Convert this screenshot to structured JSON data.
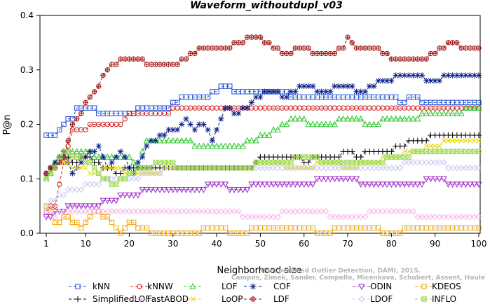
{
  "chart_data": {
    "type": "line",
    "title": "Waveform_withoutdupl_v03",
    "xlabel": "Neighborhood size",
    "ylabel": "P@n",
    "xlim": [
      1,
      100
    ],
    "ylim": [
      0,
      0.4
    ],
    "x_ticks": [
      1,
      10,
      20,
      30,
      40,
      50,
      60,
      70,
      80,
      90,
      100
    ],
    "y_ticks": [
      0.0,
      0.1,
      0.2,
      0.3,
      0.4
    ],
    "y_tick_labels": [
      "0.0",
      "0.1",
      "0.2",
      "0.3",
      "0.4"
    ],
    "grid": false,
    "legend_position": "bottom",
    "watermark": [
      "Campos, Zimek, Sander, Campello, Micenkova, Schubert, Assent, Houle",
      "Unsupervised Outlier Detection, DAMI, 2015."
    ],
    "series": [
      {
        "name": "kNN",
        "color": "#1f4fd6",
        "marker": "square",
        "dash": "4,3",
        "points": [
          [
            1,
            0.18
          ],
          [
            3,
            0.18
          ],
          [
            4,
            0.19
          ],
          [
            5,
            0.2
          ],
          [
            7,
            0.21
          ],
          [
            8,
            0.23
          ],
          [
            12,
            0.23
          ],
          [
            13,
            0.22
          ],
          [
            20,
            0.22
          ],
          [
            24,
            0.23
          ],
          [
            28,
            0.23
          ],
          [
            31,
            0.24
          ],
          [
            33,
            0.25
          ],
          [
            38,
            0.25
          ],
          [
            40,
            0.26
          ],
          [
            42,
            0.27
          ],
          [
            45,
            0.26
          ],
          [
            55,
            0.26
          ],
          [
            57,
            0.25
          ],
          [
            80,
            0.25
          ],
          [
            82,
            0.24
          ],
          [
            85,
            0.25
          ],
          [
            87,
            0.24
          ],
          [
            100,
            0.24
          ]
        ]
      },
      {
        "name": "kNNW",
        "color": "#d02020",
        "marker": "circle",
        "dash": "4,3",
        "points": [
          [
            1,
            0.04
          ],
          [
            3,
            0.05
          ],
          [
            5,
            0.13
          ],
          [
            7,
            0.19
          ],
          [
            10,
            0.19
          ],
          [
            11,
            0.2
          ],
          [
            18,
            0.2
          ],
          [
            19,
            0.21
          ],
          [
            21,
            0.22
          ],
          [
            29,
            0.22
          ],
          [
            31,
            0.23
          ],
          [
            100,
            0.23
          ]
        ]
      },
      {
        "name": "LOF",
        "color": "#2ec42e",
        "marker": "triangle",
        "dash": "4,3",
        "points": [
          [
            1,
            0.1
          ],
          [
            4,
            0.14
          ],
          [
            8,
            0.15
          ],
          [
            14,
            0.14
          ],
          [
            20,
            0.14
          ],
          [
            22,
            0.12
          ],
          [
            24,
            0.17
          ],
          [
            32,
            0.17
          ],
          [
            36,
            0.16
          ],
          [
            45,
            0.16
          ],
          [
            48,
            0.17
          ],
          [
            52,
            0.18
          ],
          [
            55,
            0.2
          ],
          [
            58,
            0.21
          ],
          [
            62,
            0.2
          ],
          [
            66,
            0.2
          ],
          [
            70,
            0.21
          ],
          [
            76,
            0.2
          ],
          [
            80,
            0.21
          ],
          [
            86,
            0.21
          ],
          [
            88,
            0.22
          ],
          [
            96,
            0.22
          ],
          [
            98,
            0.23
          ],
          [
            100,
            0.23
          ]
        ]
      },
      {
        "name": "COF",
        "color": "#0a1f8a",
        "marker": "star",
        "dash": "4,3",
        "points": [
          [
            1,
            0.11
          ],
          [
            3,
            0.13
          ],
          [
            5,
            0.15
          ],
          [
            7,
            0.11
          ],
          [
            10,
            0.14
          ],
          [
            13,
            0.16
          ],
          [
            15,
            0.12
          ],
          [
            18,
            0.15
          ],
          [
            21,
            0.11
          ],
          [
            24,
            0.16
          ],
          [
            27,
            0.18
          ],
          [
            31,
            0.19
          ],
          [
            33,
            0.21
          ],
          [
            35,
            0.19
          ],
          [
            37,
            0.2
          ],
          [
            39,
            0.17
          ],
          [
            42,
            0.23
          ],
          [
            45,
            0.22
          ],
          [
            48,
            0.24
          ],
          [
            52,
            0.26
          ],
          [
            56,
            0.25
          ],
          [
            60,
            0.27
          ],
          [
            64,
            0.26
          ],
          [
            70,
            0.27
          ],
          [
            73,
            0.26
          ],
          [
            78,
            0.28
          ],
          [
            84,
            0.29
          ],
          [
            90,
            0.28
          ],
          [
            93,
            0.29
          ],
          [
            100,
            0.29
          ]
        ]
      },
      {
        "name": "ODIN",
        "color": "#9b29c9",
        "marker": "invtriangle",
        "dash": "4,3",
        "points": [
          [
            1,
            0.03
          ],
          [
            4,
            0.04
          ],
          [
            8,
            0.05
          ],
          [
            12,
            0.05
          ],
          [
            16,
            0.06
          ],
          [
            20,
            0.07
          ],
          [
            25,
            0.08
          ],
          [
            30,
            0.08
          ],
          [
            35,
            0.08
          ],
          [
            40,
            0.09
          ],
          [
            45,
            0.08
          ],
          [
            50,
            0.09
          ],
          [
            55,
            0.09
          ],
          [
            60,
            0.09
          ],
          [
            65,
            0.1
          ],
          [
            70,
            0.1
          ],
          [
            75,
            0.09
          ],
          [
            80,
            0.09
          ],
          [
            85,
            0.09
          ],
          [
            90,
            0.1
          ],
          [
            95,
            0.09
          ],
          [
            100,
            0.09
          ]
        ]
      },
      {
        "name": "KDEOS",
        "color": "#f0a500",
        "marker": "square",
        "dash": "4,3",
        "points": [
          [
            1,
            0.05
          ],
          [
            3,
            0.02
          ],
          [
            6,
            0.03
          ],
          [
            9,
            0.01
          ],
          [
            12,
            0.04
          ],
          [
            15,
            0.03
          ],
          [
            18,
            0.0
          ],
          [
            20,
            0.02
          ],
          [
            22,
            0.01
          ],
          [
            26,
            0.0
          ],
          [
            34,
            0.0
          ],
          [
            40,
            0.01
          ],
          [
            45,
            0.0
          ],
          [
            50,
            0.01
          ],
          [
            60,
            0.01
          ],
          [
            65,
            0.0
          ],
          [
            68,
            0.01
          ],
          [
            75,
            0.01
          ],
          [
            80,
            0.0
          ],
          [
            85,
            0.01
          ],
          [
            100,
            0.01
          ]
        ]
      },
      {
        "name": "SimplifiedLOF",
        "color": "#000000",
        "marker": "plus",
        "dash": "4,3",
        "points": [
          [
            1,
            0.11
          ],
          [
            3,
            0.12
          ],
          [
            5,
            0.14
          ],
          [
            8,
            0.13
          ],
          [
            10,
            0.14
          ],
          [
            14,
            0.12
          ],
          [
            18,
            0.11
          ],
          [
            20,
            0.12
          ],
          [
            25,
            0.12
          ],
          [
            48,
            0.12
          ],
          [
            50,
            0.14
          ],
          [
            58,
            0.14
          ],
          [
            60,
            0.13
          ],
          [
            64,
            0.14
          ],
          [
            68,
            0.14
          ],
          [
            70,
            0.15
          ],
          [
            72,
            0.14
          ],
          [
            75,
            0.15
          ],
          [
            80,
            0.15
          ],
          [
            82,
            0.16
          ],
          [
            85,
            0.17
          ],
          [
            88,
            0.17
          ],
          [
            90,
            0.18
          ],
          [
            100,
            0.18
          ]
        ]
      },
      {
        "name": "FastABOD",
        "color": "#f5b3ee",
        "marker": "diamond",
        "dash": "4,3",
        "points": [
          [
            1,
            0.04
          ],
          [
            3,
            0.03
          ],
          [
            5,
            0.04
          ],
          [
            10,
            0.04
          ],
          [
            20,
            0.04
          ],
          [
            30,
            0.04
          ],
          [
            40,
            0.04
          ],
          [
            50,
            0.03
          ],
          [
            60,
            0.04
          ],
          [
            70,
            0.03
          ],
          [
            80,
            0.04
          ],
          [
            90,
            0.03
          ],
          [
            100,
            0.03
          ]
        ]
      },
      {
        "name": "LoOP",
        "color": "#e7d800",
        "marker": "cross",
        "dash": "4,3",
        "points": [
          [
            1,
            0.1
          ],
          [
            4,
            0.13
          ],
          [
            8,
            0.12
          ],
          [
            12,
            0.11
          ],
          [
            16,
            0.12
          ],
          [
            20,
            0.11
          ],
          [
            25,
            0.11
          ],
          [
            30,
            0.12
          ],
          [
            40,
            0.12
          ],
          [
            48,
            0.12
          ],
          [
            50,
            0.13
          ],
          [
            60,
            0.12
          ],
          [
            66,
            0.13
          ],
          [
            70,
            0.12
          ],
          [
            75,
            0.13
          ],
          [
            80,
            0.14
          ],
          [
            85,
            0.15
          ],
          [
            90,
            0.16
          ],
          [
            94,
            0.17
          ],
          [
            100,
            0.17
          ]
        ]
      },
      {
        "name": "LDF",
        "color": "#a31515",
        "marker": "circleplus",
        "dash": "4,3",
        "points": [
          [
            1,
            0.11
          ],
          [
            3,
            0.12
          ],
          [
            5,
            0.14
          ],
          [
            7,
            0.2
          ],
          [
            9,
            0.22
          ],
          [
            11,
            0.25
          ],
          [
            13,
            0.27
          ],
          [
            15,
            0.3
          ],
          [
            18,
            0.32
          ],
          [
            22,
            0.32
          ],
          [
            25,
            0.31
          ],
          [
            30,
            0.31
          ],
          [
            33,
            0.32
          ],
          [
            37,
            0.34
          ],
          [
            42,
            0.34
          ],
          [
            45,
            0.35
          ],
          [
            48,
            0.36
          ],
          [
            52,
            0.35
          ],
          [
            55,
            0.33
          ],
          [
            60,
            0.34
          ],
          [
            63,
            0.33
          ],
          [
            66,
            0.33
          ],
          [
            69,
            0.34
          ],
          [
            70,
            0.36
          ],
          [
            72,
            0.34
          ],
          [
            76,
            0.34
          ],
          [
            78,
            0.33
          ],
          [
            80,
            0.32
          ],
          [
            88,
            0.32
          ],
          [
            90,
            0.33
          ],
          [
            94,
            0.35
          ],
          [
            97,
            0.34
          ],
          [
            100,
            0.34
          ]
        ]
      },
      {
        "name": "LDOF",
        "color": "#c9c9f0",
        "marker": "diamond",
        "dash": "4,3",
        "points": [
          [
            1,
            0.05
          ],
          [
            4,
            0.07
          ],
          [
            8,
            0.08
          ],
          [
            12,
            0.09
          ],
          [
            16,
            0.1
          ],
          [
            20,
            0.1
          ],
          [
            25,
            0.11
          ],
          [
            30,
            0.12
          ],
          [
            40,
            0.12
          ],
          [
            50,
            0.12
          ],
          [
            60,
            0.12
          ],
          [
            70,
            0.12
          ],
          [
            80,
            0.12
          ],
          [
            85,
            0.13
          ],
          [
            90,
            0.13
          ],
          [
            95,
            0.12
          ],
          [
            100,
            0.12
          ]
        ]
      },
      {
        "name": "INFLO",
        "color": "#9ad84a",
        "marker": "boxcross",
        "dash": "4,3",
        "points": [
          [
            1,
            0.1
          ],
          [
            3,
            0.12
          ],
          [
            5,
            0.15
          ],
          [
            8,
            0.14
          ],
          [
            11,
            0.13
          ],
          [
            14,
            0.1
          ],
          [
            17,
            0.09
          ],
          [
            20,
            0.11
          ],
          [
            24,
            0.12
          ],
          [
            28,
            0.13
          ],
          [
            32,
            0.12
          ],
          [
            40,
            0.12
          ],
          [
            48,
            0.12
          ],
          [
            50,
            0.13
          ],
          [
            56,
            0.13
          ],
          [
            60,
            0.14
          ],
          [
            66,
            0.13
          ],
          [
            70,
            0.13
          ],
          [
            76,
            0.13
          ],
          [
            82,
            0.14
          ],
          [
            88,
            0.15
          ],
          [
            100,
            0.15
          ]
        ]
      }
    ]
  }
}
